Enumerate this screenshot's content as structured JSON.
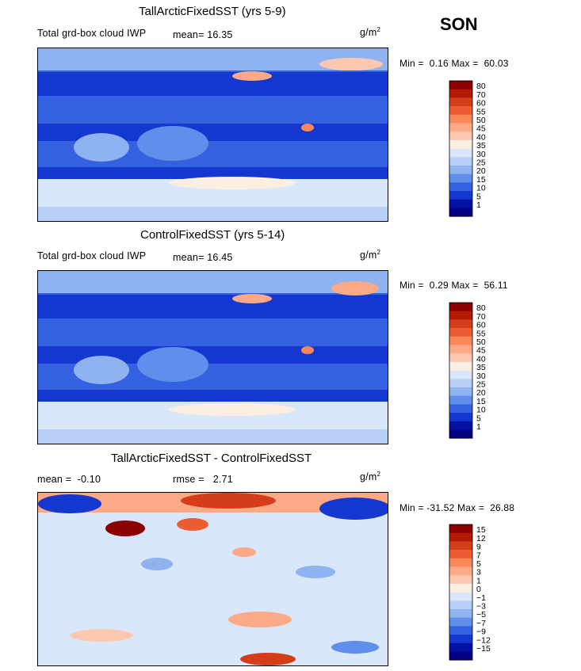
{
  "season": "SON",
  "units": "g/m",
  "units_exp": "2",
  "chart_data": [
    {
      "type": "heatmap",
      "title": "TallArcticFixedSST (yrs 5-9)",
      "variable_label": "Total grd-box cloud IWP",
      "mean_label": "mean=",
      "mean_value": "16.35",
      "min_label": "Min =",
      "min_value": "0.16",
      "max_label": "Max =",
      "max_value": "60.03",
      "colorbar": {
        "labels": [
          "80",
          "70",
          "60",
          "55",
          "50",
          "45",
          "40",
          "35",
          "30",
          "25",
          "20",
          "15",
          "10",
          "5",
          "1"
        ],
        "colors": [
          "#8b0000",
          "#b51a00",
          "#d43d1a",
          "#ec5d32",
          "#f8875b",
          "#fba987",
          "#fcc9b0",
          "#fdeee2",
          "#d9e7fb",
          "#b8d0f7",
          "#8fb2f1",
          "#5f8fea",
          "#3361e0",
          "#1437cf",
          "#040fa4",
          "#000080"
        ]
      }
    },
    {
      "type": "heatmap",
      "title": "ControlFixedSST (yrs 5-14)",
      "variable_label": "Total grd-box cloud IWP",
      "mean_label": "mean=",
      "mean_value": "16.45",
      "min_label": "Min =",
      "min_value": "0.29",
      "max_label": "Max =",
      "max_value": "56.11",
      "colorbar": {
        "labels": [
          "80",
          "70",
          "60",
          "55",
          "50",
          "45",
          "40",
          "35",
          "30",
          "25",
          "20",
          "15",
          "10",
          "5",
          "1"
        ],
        "colors": [
          "#8b0000",
          "#b51a00",
          "#d43d1a",
          "#ec5d32",
          "#f8875b",
          "#fba987",
          "#fcc9b0",
          "#fdeee2",
          "#d9e7fb",
          "#b8d0f7",
          "#8fb2f1",
          "#5f8fea",
          "#3361e0",
          "#1437cf",
          "#040fa4",
          "#000080"
        ]
      }
    },
    {
      "type": "heatmap",
      "title": "TallArcticFixedSST - ControlFixedSST",
      "mean_label": "mean =",
      "mean_value": "-0.10",
      "rmse_label": "rmse =",
      "rmse_value": "2.71",
      "min_label": "Min =",
      "min_value": "-31.52",
      "max_label": "Max =",
      "max_value": "26.88",
      "colorbar": {
        "labels": [
          "15",
          "12",
          "9",
          "7",
          "5",
          "3",
          "1",
          "0",
          "-1",
          "-3",
          "-5",
          "-7",
          "-9",
          "-12",
          "-15"
        ],
        "colors": [
          "#8b0000",
          "#b51a00",
          "#d43d1a",
          "#ec5d32",
          "#f8875b",
          "#fba987",
          "#fcc9b0",
          "#fdeee2",
          "#d9e7fb",
          "#b8d0f7",
          "#8fb2f1",
          "#5f8fea",
          "#3361e0",
          "#1437cf",
          "#040fa4",
          "#000080"
        ]
      }
    }
  ]
}
